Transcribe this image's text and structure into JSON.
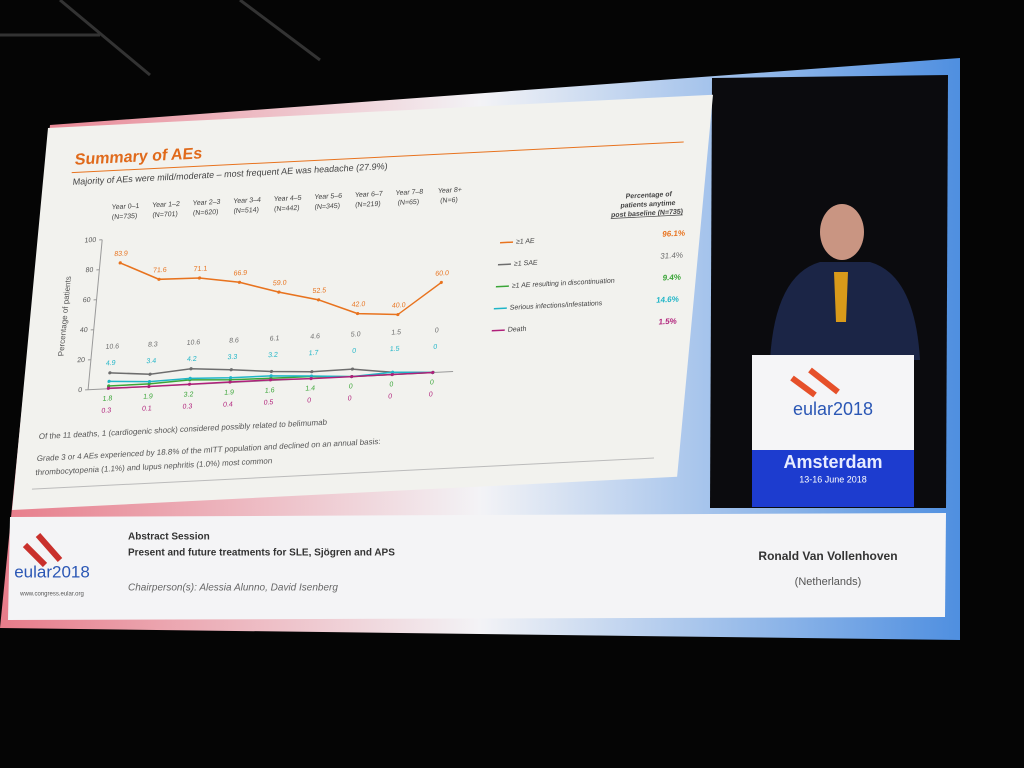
{
  "chart_data": {
    "type": "line",
    "title": "Summary of AEs",
    "subtitle": "Majority of AEs were mild/moderate – most frequent AE was headache (27.9%)",
    "y_label": "Percentage of patients",
    "categories": [
      "Year 0–1",
      "Year 1–2",
      "Year 2–3",
      "Year 3–4",
      "Year 4–5",
      "Year 5–6",
      "Year 6–7",
      "Year 7–8",
      "Year 8+"
    ],
    "category_counts": [
      "(N=735)",
      "(N=701)",
      "(N=620)",
      "(N=514)",
      "(N=442)",
      "(N=345)",
      "(N=219)",
      "(N=65)",
      "(N=6)"
    ],
    "ylim": [
      0,
      100
    ],
    "yticks": [
      0,
      20,
      40,
      60,
      80,
      100
    ],
    "legend_header": [
      "Percentage of",
      "patients anytime",
      "post baseline (N=735)"
    ],
    "series": [
      {
        "name": "≥1 AE",
        "color": "#e8731e",
        "overall": "96.1%",
        "values": [
          83.9,
          71.6,
          71.1,
          66.9,
          59.0,
          52.5,
          42.0,
          40.0,
          60.0
        ],
        "value_labels": [
          "83.9",
          "71.6",
          "71.1",
          "66.9",
          "59.0",
          "52.5",
          "42.0",
          "40.0",
          "60.0"
        ]
      },
      {
        "name": "≥1 SAE",
        "color": "#6d6d6d",
        "overall": "31.4%",
        "values": [
          10.6,
          8.3,
          10.6,
          8.6,
          6.1,
          4.6,
          5.0,
          1.5,
          0
        ],
        "value_labels": [
          "10.6",
          "8.3",
          "10.6",
          "8.6",
          "6.1",
          "4.6",
          "5.0",
          "1.5",
          "0"
        ]
      },
      {
        "name": "≥1 AE resulting in discontinuation",
        "color": "#3aa537",
        "overall": "9.4%",
        "values": [
          1.8,
          1.9,
          3.2,
          1.9,
          1.6,
          1.4,
          0,
          0,
          0
        ],
        "value_labels": [
          "1.8",
          "1.9",
          "3.2",
          "1.9",
          "1.6",
          "1.4",
          "0",
          "0",
          "0"
        ]
      },
      {
        "name": "Serious infections/infestations",
        "color": "#1fb5c7",
        "overall": "14.6%",
        "values": [
          4.9,
          3.4,
          4.2,
          3.3,
          3.2,
          1.7,
          0,
          1.5,
          0
        ],
        "value_labels": [
          "4.9",
          "3.4",
          "4.2",
          "3.3",
          "3.2",
          "1.7",
          "0",
          "1.5",
          "0"
        ]
      },
      {
        "name": "Death",
        "color": "#b0207a",
        "overall": "1.5%",
        "values": [
          0.3,
          0.1,
          0.3,
          0.4,
          0.5,
          0,
          0,
          0,
          0
        ],
        "value_labels": [
          "0.3",
          "0.1",
          "0.3",
          "0.4",
          "0.5",
          "0",
          "0",
          "0",
          "0"
        ]
      }
    ]
  },
  "slide": {
    "bullets": [
      "Of the 11 deaths, 1 (cardiogenic shock) considered possibly related to belimumab",
      "Grade 3 or 4 AEs experienced by 18.8% of the mITT population and declined on an annual basis:",
      "thrombocytopenia (1.1%) and lupus nephritis (1.0%) most common"
    ]
  },
  "banner": {
    "session": "Abstract Session",
    "topic": "Present and future treatments for SLE, Sjögren and APS",
    "chairs": "Chairperson(s): Alessia Alunno, David Isenberg",
    "speaker": "Ronald Van Vollenhoven",
    "country": "(Netherlands)",
    "logo": "eular2018",
    "url": "www.congress.eular.org"
  },
  "video": {
    "logo": "eular2018",
    "city": "Amsterdam",
    "dates": "13-16 June 2018"
  }
}
